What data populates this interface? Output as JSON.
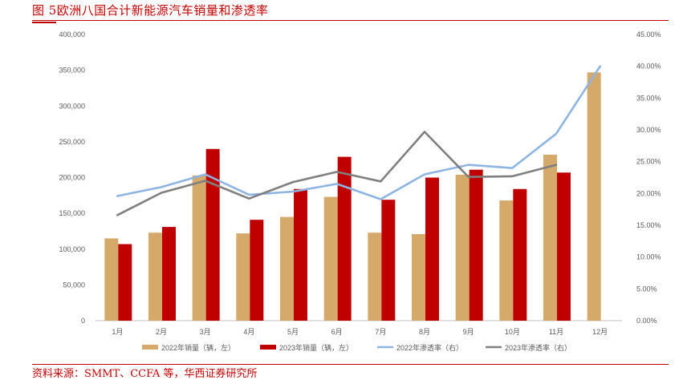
{
  "title": "图 5欧洲八国合计新能源汽车销量和渗透率",
  "source": "资料来源：SMMT、CCFA 等，华西证券研究所",
  "colors": {
    "title_red": "#c00000",
    "bar_2022": "#d4a96a",
    "bar_2023": "#c00000",
    "line_2022": "#8db4e2",
    "line_2023": "#7f7f7f"
  },
  "chart_data": {
    "type": "bar",
    "categories": [
      "1月",
      "2月",
      "3月",
      "4月",
      "5月",
      "6月",
      "7月",
      "8月",
      "9月",
      "10月",
      "11月",
      "12月"
    ],
    "left_axis": {
      "ylim": [
        0,
        400000
      ],
      "ticks": [
        "0",
        "50,000",
        "100,000",
        "150,000",
        "200,000",
        "250,000",
        "300,000",
        "350,000",
        "400,000"
      ]
    },
    "right_axis": {
      "ylim": [
        0,
        45
      ],
      "ticks": [
        "0.00%",
        "5.00%",
        "10.00%",
        "15.00%",
        "20.00%",
        "25.00%",
        "30.00%",
        "35.00%",
        "40.00%",
        "45.00%"
      ]
    },
    "series": [
      {
        "name": "2022年销量（辆，左）",
        "kind": "bar",
        "axis": "left",
        "values": [
          115000,
          123000,
          203000,
          122000,
          145000,
          173000,
          123000,
          121000,
          204000,
          168000,
          232000,
          347000
        ]
      },
      {
        "name": "2023年销量（辆，左）",
        "kind": "bar",
        "axis": "left",
        "values": [
          107000,
          131000,
          240000,
          141000,
          184000,
          229000,
          169000,
          200000,
          211000,
          184000,
          207000,
          null
        ]
      },
      {
        "name": "2022年渗透率（右）",
        "kind": "line",
        "axis": "right",
        "values": [
          19.6,
          21.0,
          23.0,
          19.8,
          20.3,
          21.5,
          19.1,
          23.0,
          24.5,
          24.0,
          29.4,
          40.0
        ]
      },
      {
        "name": "2023年渗透率（右）",
        "kind": "line",
        "axis": "right",
        "values": [
          16.6,
          20.1,
          22.0,
          19.2,
          21.8,
          23.4,
          21.9,
          29.7,
          22.6,
          22.7,
          24.5,
          null
        ]
      }
    ],
    "legend_position": "bottom",
    "grid": false
  }
}
